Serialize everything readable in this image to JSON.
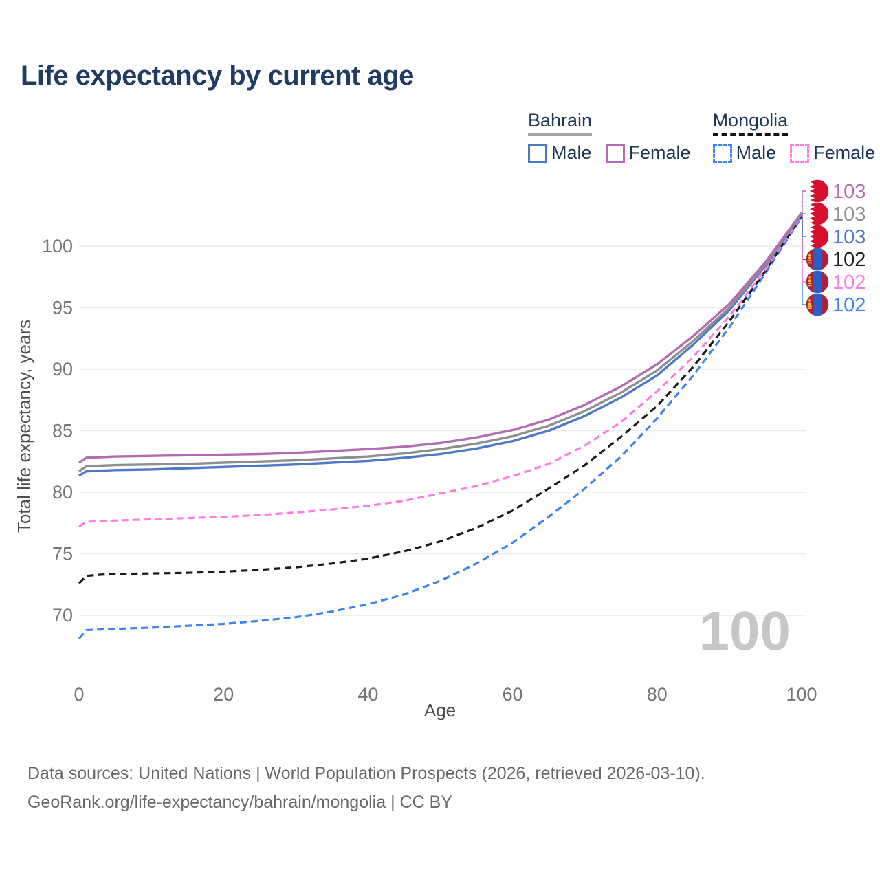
{
  "title": "Life expectancy by current age",
  "legend": {
    "groups": [
      {
        "country": "Bahrain",
        "line_style": "solid",
        "underline_color": "#a6a6a6",
        "items": [
          {
            "label": "Male",
            "color": "#4e79c5"
          },
          {
            "label": "Female",
            "color": "#b36cb4"
          }
        ]
      },
      {
        "country": "Mongolia",
        "line_style": "dashed",
        "underline_color": "#141414",
        "items": [
          {
            "label": "Male",
            "color": "#3f83f0"
          },
          {
            "label": "Female",
            "color": "#ff7ce0"
          }
        ]
      }
    ]
  },
  "chart_data": {
    "type": "line",
    "title": "Life expectancy by current age",
    "xlabel": "Age",
    "ylabel": "Total life expectancy, years",
    "x_ticks": [
      0,
      20,
      40,
      60,
      80,
      100
    ],
    "y_ticks": [
      70,
      75,
      80,
      85,
      90,
      95,
      100
    ],
    "xlim": [
      0,
      100
    ],
    "ylim": [
      66,
      107
    ],
    "grid": true,
    "legend_position": "top-right",
    "watermark": "100",
    "x": [
      0,
      1,
      3,
      5,
      10,
      15,
      20,
      25,
      30,
      35,
      40,
      45,
      50,
      55,
      60,
      65,
      70,
      75,
      80,
      85,
      90,
      95,
      100
    ],
    "series": [
      {
        "name": "Mongolia Male",
        "country": "Mongolia",
        "sex": "Male",
        "color": "#3f83f0",
        "dash": "dashed",
        "flag": "mongolia",
        "end_label": "102",
        "label_row": 5,
        "values": [
          68.1,
          68.8,
          68.85,
          68.9,
          69.0,
          69.15,
          69.3,
          69.55,
          69.85,
          70.3,
          70.9,
          71.7,
          72.8,
          74.2,
          75.9,
          78.0,
          80.3,
          82.9,
          86.0,
          89.5,
          93.4,
          97.8,
          102.35
        ]
      },
      {
        "name": "Mongolia Both sexes",
        "country": "Mongolia",
        "sex": "Both sexes",
        "color": "#1a1a1a",
        "dash": "dashed",
        "flag": "mongolia",
        "end_label": "102",
        "label_row": 3,
        "values": [
          72.6,
          73.2,
          73.3,
          73.35,
          73.4,
          73.45,
          73.55,
          73.7,
          73.9,
          74.2,
          74.6,
          75.2,
          76.0,
          77.1,
          78.5,
          80.3,
          82.2,
          84.5,
          87.0,
          90.2,
          93.9,
          98.0,
          102.45
        ]
      },
      {
        "name": "Mongolia Female",
        "country": "Mongolia",
        "sex": "Female",
        "color": "#ff7ce0",
        "dash": "dashed",
        "flag": "mongolia",
        "end_label": "102",
        "label_row": 4,
        "values": [
          77.2,
          77.6,
          77.65,
          77.7,
          77.8,
          77.9,
          78.0,
          78.15,
          78.35,
          78.6,
          78.9,
          79.3,
          79.9,
          80.5,
          81.3,
          82.3,
          83.8,
          85.7,
          88.2,
          91.0,
          94.3,
          98.1,
          102.5
        ]
      },
      {
        "name": "Bahrain Male",
        "country": "Bahrain",
        "sex": "Male",
        "color": "#4e79c5",
        "dash": "solid",
        "flag": "bahrain",
        "end_label": "103",
        "label_row": 2,
        "values": [
          81.35,
          81.7,
          81.75,
          81.8,
          81.85,
          81.95,
          82.05,
          82.15,
          82.25,
          82.4,
          82.55,
          82.8,
          83.1,
          83.55,
          84.15,
          85.0,
          86.2,
          87.7,
          89.5,
          92.0,
          94.8,
          98.4,
          102.6
        ]
      },
      {
        "name": "Bahrain Both sexes",
        "country": "Bahrain",
        "sex": "Both sexes",
        "color": "#8f8f8f",
        "dash": "solid",
        "flag": "bahrain",
        "end_label": "103",
        "label_row": 1,
        "values": [
          81.7,
          82.1,
          82.15,
          82.2,
          82.25,
          82.3,
          82.4,
          82.5,
          82.6,
          82.75,
          82.9,
          83.15,
          83.5,
          83.95,
          84.55,
          85.4,
          86.6,
          88.1,
          89.9,
          92.3,
          95.0,
          98.5,
          102.65
        ]
      },
      {
        "name": "Bahrain Female",
        "country": "Bahrain",
        "sex": "Female",
        "color": "#b36cb4",
        "dash": "solid",
        "flag": "bahrain",
        "end_label": "103",
        "label_row": 0,
        "values": [
          82.4,
          82.8,
          82.85,
          82.9,
          82.95,
          83.0,
          83.05,
          83.1,
          83.2,
          83.35,
          83.5,
          83.7,
          84.0,
          84.45,
          85.05,
          85.9,
          87.1,
          88.6,
          90.4,
          92.7,
          95.3,
          98.7,
          102.7
        ]
      }
    ]
  },
  "colors": {
    "title": "#203c60",
    "axis_text": "#767676",
    "axis_title": "#4f4f4f",
    "gridline": "#ebebeb",
    "watermark": "#c7c7c7",
    "legend_text": "#1d3557",
    "flag_bahrain_red": "#d60f2e",
    "flag_mongolia_red": "#aa1f3f",
    "flag_mongolia_blue": "#2b5fc7",
    "flag_mongolia_yellow": "#f2c235"
  },
  "footer": {
    "line1": "Data sources: United Nations | World Population Prospects (2026, retrieved 2026-03-10).",
    "line2": "GeoRank.org/life-expectancy/bahrain/mongolia | CC BY"
  }
}
